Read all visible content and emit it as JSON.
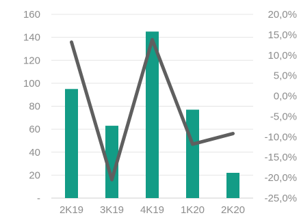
{
  "chart_data": {
    "type": "bar",
    "categories": [
      "2K19",
      "3K19",
      "4K19",
      "1K20",
      "2K20"
    ],
    "series": [
      {
        "type": "bar",
        "axis": "left",
        "values": [
          95,
          63,
          145,
          77,
          22
        ],
        "color": "#139c86"
      },
      {
        "type": "line",
        "axis": "right",
        "values": [
          13.2,
          -20.5,
          13.8,
          -11.8,
          -9.2
        ],
        "color": "#5f5f5f"
      }
    ],
    "y_left": {
      "range": [
        0,
        160
      ],
      "ticks": [
        "-",
        "20",
        "40",
        "60",
        "80",
        "100",
        "120",
        "140",
        "160"
      ]
    },
    "y_right": {
      "range": [
        -25,
        20
      ],
      "ticks": [
        "-25,0%",
        "-20,0%",
        "-15,0%",
        "-10,0%",
        "-5,0%",
        "0,0%",
        "5,0%",
        "10,0%",
        "15,0%",
        "20,0%"
      ]
    },
    "grid": true,
    "legend": "none"
  }
}
